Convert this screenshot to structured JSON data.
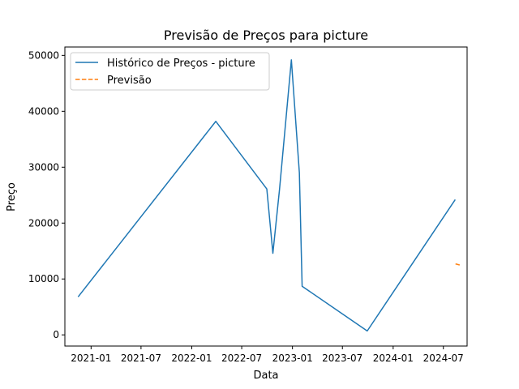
{
  "chart_data": {
    "type": "line",
    "title": "Previsão de Preços para picture",
    "xlabel": "Data",
    "ylabel": "Preço",
    "x_ticks": [
      "2021-01",
      "2021-07",
      "2022-01",
      "2022-07",
      "2023-01",
      "2023-07",
      "2024-01",
      "2024-07"
    ],
    "y_ticks": [
      0,
      10000,
      20000,
      30000,
      40000,
      50000
    ],
    "xlim": [
      "2020-09-28",
      "2024-09-25"
    ],
    "ylim": [
      -2000,
      51500
    ],
    "grid": false,
    "legend_position": "top-left",
    "series": [
      {
        "name": "Histórico de Preços - picture",
        "color": "#1f77b4",
        "style": "solid",
        "x": [
          "2020-11-15",
          "2022-03-29",
          "2022-09-30",
          "2022-10-22",
          "2022-11-15",
          "2022-12-28",
          "2023-01-26",
          "2023-02-05",
          "2023-09-29",
          "2024-08-13"
        ],
        "y": [
          6800,
          38200,
          26100,
          14600,
          26000,
          49200,
          29000,
          8700,
          700,
          24200
        ]
      },
      {
        "name": "Previsão",
        "color": "#ff7f0e",
        "style": "dashed",
        "x": [
          "2024-08-14",
          "2024-08-29"
        ],
        "y": [
          12700,
          12500
        ]
      }
    ]
  }
}
